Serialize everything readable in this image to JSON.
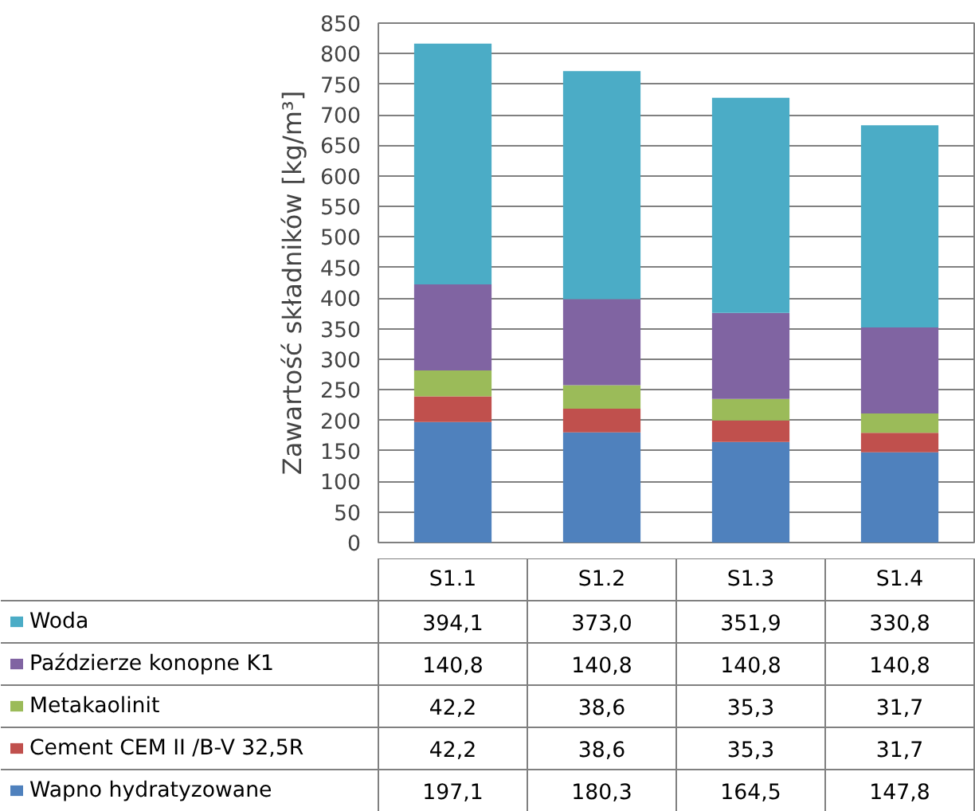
{
  "chart_data": {
    "type": "bar",
    "stacked": true,
    "ylabel": "Zawartość składników [kg/m³]",
    "categories": [
      "S1.1",
      "S1.2",
      "S1.3",
      "S1.4"
    ],
    "ylim": [
      0,
      850
    ],
    "yticks": [
      0,
      50,
      100,
      150,
      200,
      250,
      300,
      350,
      400,
      450,
      500,
      550,
      600,
      650,
      700,
      750,
      800,
      850
    ],
    "grid": "y",
    "legend": "bottom",
    "series": [
      {
        "name": "Wapno hydratyzowane",
        "color": "#4f81bd",
        "values": [
          197.1,
          180.3,
          164.5,
          147.8
        ],
        "value_labels": [
          "197,1",
          "180,3",
          "164,5",
          "147,8"
        ]
      },
      {
        "name": "Cement CEM II /B-V 32,5R",
        "color": "#c0504d",
        "values": [
          42.2,
          38.6,
          35.3,
          31.7
        ],
        "value_labels": [
          "42,2",
          "38,6",
          "35,3",
          "31,7"
        ]
      },
      {
        "name": "Metakaolinit",
        "color": "#9bbb59",
        "values": [
          42.2,
          38.6,
          35.3,
          31.7
        ],
        "value_labels": [
          "42,2",
          "38,6",
          "35,3",
          "31,7"
        ]
      },
      {
        "name": "Paździerze konopne K1",
        "color": "#8064a2",
        "values": [
          140.8,
          140.8,
          140.8,
          140.8
        ],
        "value_labels": [
          "140,8",
          "140,8",
          "140,8",
          "140,8"
        ]
      },
      {
        "name": "Woda",
        "color": "#4bacc6",
        "values": [
          394.1,
          373.0,
          351.9,
          330.8
        ],
        "value_labels": [
          "394,1",
          "373,0",
          "351,9",
          "330,8"
        ]
      }
    ]
  }
}
